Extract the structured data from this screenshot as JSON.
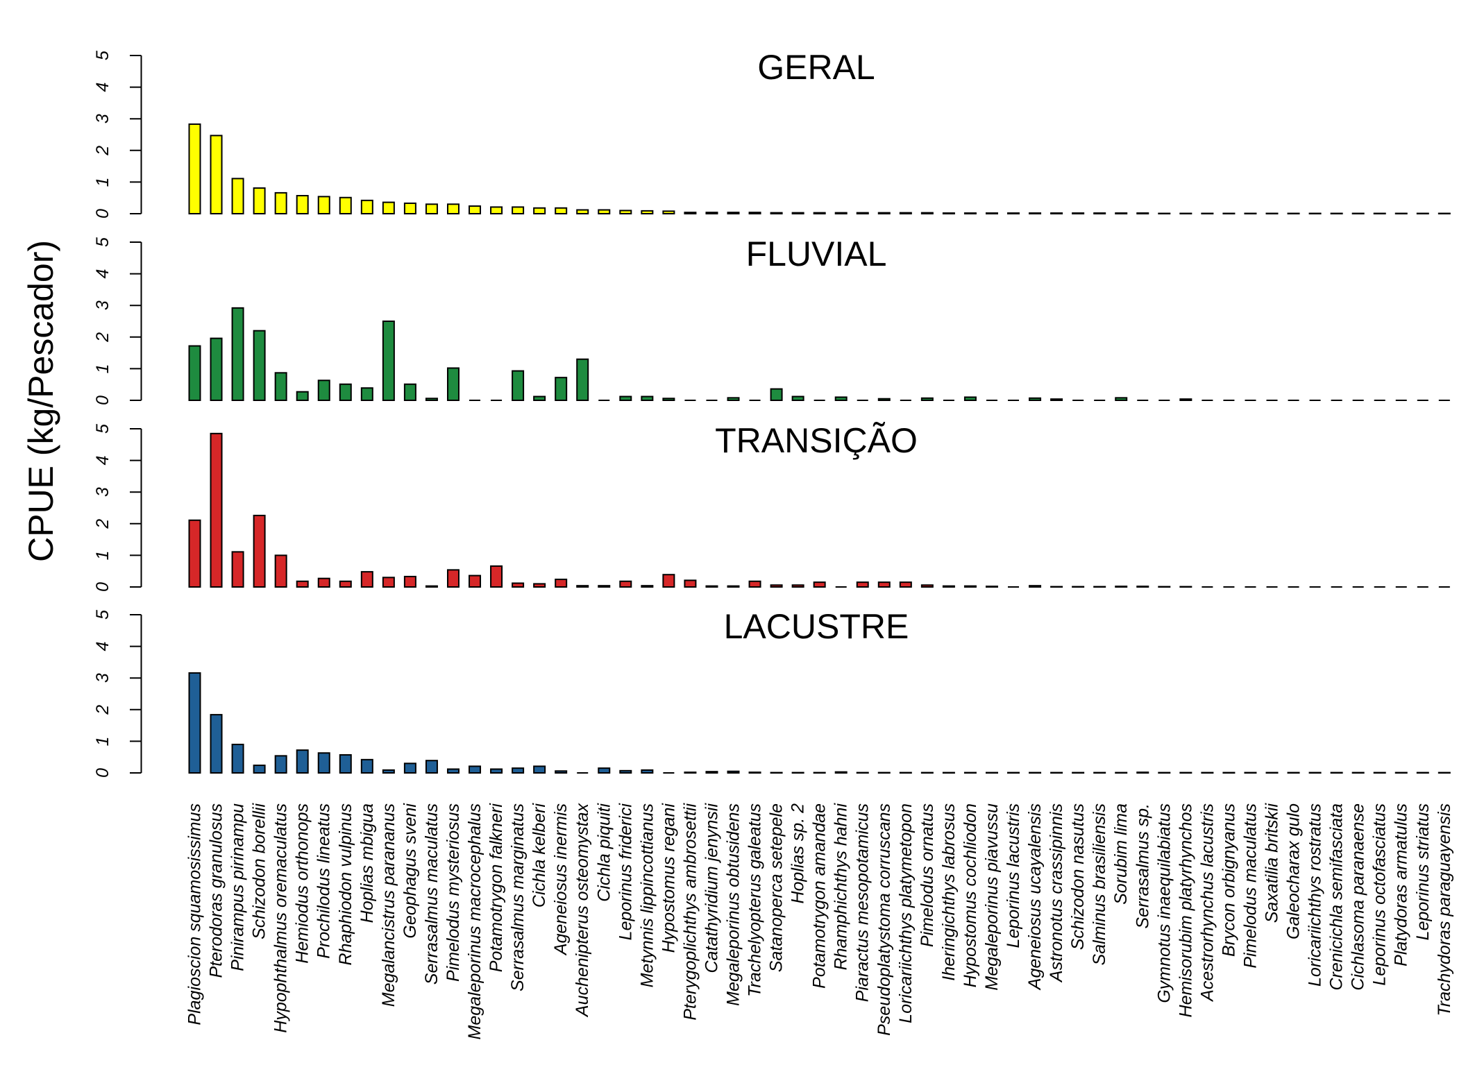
{
  "chart_data": {
    "type": "bar",
    "ylabel": "CPUE (kg/Pescador)",
    "xlabel": "",
    "ylim": [
      0,
      5
    ],
    "yticks": [
      0,
      1,
      2,
      3,
      4,
      5
    ],
    "grid": false,
    "legend": "none",
    "categories": [
      "Plagioscion squamosissimus",
      "Pterodoras granulosus",
      "Pinirampus pirinampu",
      "Schizodon borellii",
      "Hypophthalmus oremaculatus",
      "Hemiodus orthonops",
      "Prochilodus lineatus",
      "Rhaphiodon vulpinus",
      "Hoplias mbigua",
      "Megalancistrus parananus",
      "Geophagus sveni",
      "Serrasalmus maculatus",
      "Pimelodus mysteriosus",
      "Megaleporinus macrocephalus",
      "Potamotrygon falkneri",
      "Serrasalmus marginatus",
      "Cichla kelberi",
      "Ageneiosus inermis",
      "Auchenipterus osteomystax",
      "Cichla piquiti",
      "Leporinus friderici",
      "Metynnis lippincottianus",
      "Hypostomus regani",
      "Pterygoplichthys ambrosettii",
      "Catathyridium jenynsii",
      "Megaleporinus obtusidens",
      "Trachelyopterus galeatus",
      "Satanoperca setepele",
      "Hoplias sp. 2",
      "Potamotrygon amandae",
      "Rhamphichthys hahni",
      "Piaractus mesopotamicus",
      "Pseudoplatystoma corruscans",
      "Loricariichthys platymetopon",
      "Pimelodus ornatus",
      "Iheringichthys labrosus",
      "Hypostomus cochliodon",
      "Megaleporinus piavussu",
      "Leporinus lacustris",
      "Ageneiosus ucayalensis",
      "Astronotus crassipinnis",
      "Schizodon nasutus",
      "Salminus brasiliensis",
      "Sorubim lima",
      "Serrasalmus sp.",
      "Gymnotus inaequilabiatus",
      "Hemisorubim platyrhynchos",
      "Acestrorhynchus lacustris",
      "Brycon orbignyanus",
      "Pimelodus maculatus",
      "Saxatilia britskii",
      "Galeocharax gulo",
      "Loricariichthys rostratus",
      "Crenicichla semifasciata",
      "Cichlasoma paranaense",
      "Leporinus octofasciatus",
      "Platydoras armatulus",
      "Leporinus striatus",
      "Trachydoras paraguayensis"
    ],
    "series": [
      {
        "name": "GERAL",
        "color": "#FFFF00",
        "values": [
          2.83,
          2.47,
          1.11,
          0.81,
          0.66,
          0.57,
          0.54,
          0.51,
          0.42,
          0.36,
          0.33,
          0.3,
          0.3,
          0.24,
          0.21,
          0.21,
          0.18,
          0.18,
          0.12,
          0.12,
          0.1,
          0.09,
          0.08,
          0.04,
          0.04,
          0.04,
          0.04,
          0.03,
          0.03,
          0.03,
          0.03,
          0.03,
          0.03,
          0.03,
          0.03,
          0.02,
          0.02,
          0.02,
          0.02,
          0.02,
          0.02,
          0.02,
          0.02,
          0.02,
          0.02,
          0.01,
          0.01,
          0.01,
          0.01,
          0.01,
          0.01,
          0.01,
          0.01,
          0.01,
          0.01,
          0.01,
          0.01,
          0.01,
          0.01
        ]
      },
      {
        "name": "FLUVIAL",
        "color": "#1E8B3F",
        "values": [
          1.72,
          1.96,
          2.92,
          2.2,
          0.87,
          0.27,
          0.63,
          0.51,
          0.39,
          2.5,
          0.51,
          0.06,
          1.02,
          0,
          0,
          0.93,
          0.12,
          0.72,
          1.3,
          0,
          0.12,
          0.12,
          0.06,
          0,
          0,
          0.08,
          0,
          0.36,
          0.12,
          0,
          0.1,
          0,
          0.05,
          0,
          0.07,
          0,
          0.1,
          0,
          0,
          0.07,
          0.04,
          0,
          0,
          0.08,
          0,
          0,
          0.04,
          0,
          0,
          0,
          0,
          0,
          0,
          0,
          0,
          0,
          0,
          0,
          0
        ]
      },
      {
        "name": "TRANSIÇÃO",
        "color": "#D62728",
        "values": [
          2.11,
          4.85,
          1.11,
          2.26,
          1.0,
          0.18,
          0.27,
          0.18,
          0.48,
          0.3,
          0.33,
          0.03,
          0.54,
          0.36,
          0.66,
          0.12,
          0.1,
          0.24,
          0.04,
          0.04,
          0.18,
          0.04,
          0.39,
          0.21,
          0.03,
          0.03,
          0.18,
          0.06,
          0.06,
          0.15,
          0,
          0.15,
          0.15,
          0.15,
          0.06,
          0.03,
          0.03,
          0.02,
          0,
          0.04,
          0.01,
          0.01,
          0.01,
          0.02,
          0.02,
          0.01,
          0.01,
          0,
          0,
          0,
          0,
          0,
          0,
          0,
          0,
          0,
          0,
          0,
          0
        ]
      },
      {
        "name": "LACUSTRE",
        "color": "#1F5F96",
        "values": [
          3.16,
          1.84,
          0.9,
          0.24,
          0.54,
          0.72,
          0.63,
          0.57,
          0.42,
          0.09,
          0.3,
          0.39,
          0.12,
          0.21,
          0.12,
          0.15,
          0.21,
          0.06,
          0,
          0.15,
          0.07,
          0.09,
          0,
          0.02,
          0.04,
          0.05,
          0.02,
          0.01,
          0.01,
          0.01,
          0.03,
          0.01,
          0.01,
          0.01,
          0.01,
          0.01,
          0.01,
          0.01,
          0.01,
          0.01,
          0.01,
          0.01,
          0.01,
          0.01,
          0.02,
          0.01,
          0.01,
          0.01,
          0.01,
          0.01,
          0.01,
          0.01,
          0.01,
          0.01,
          0.01,
          0.01,
          0.01,
          0.01,
          0.01
        ]
      }
    ]
  }
}
